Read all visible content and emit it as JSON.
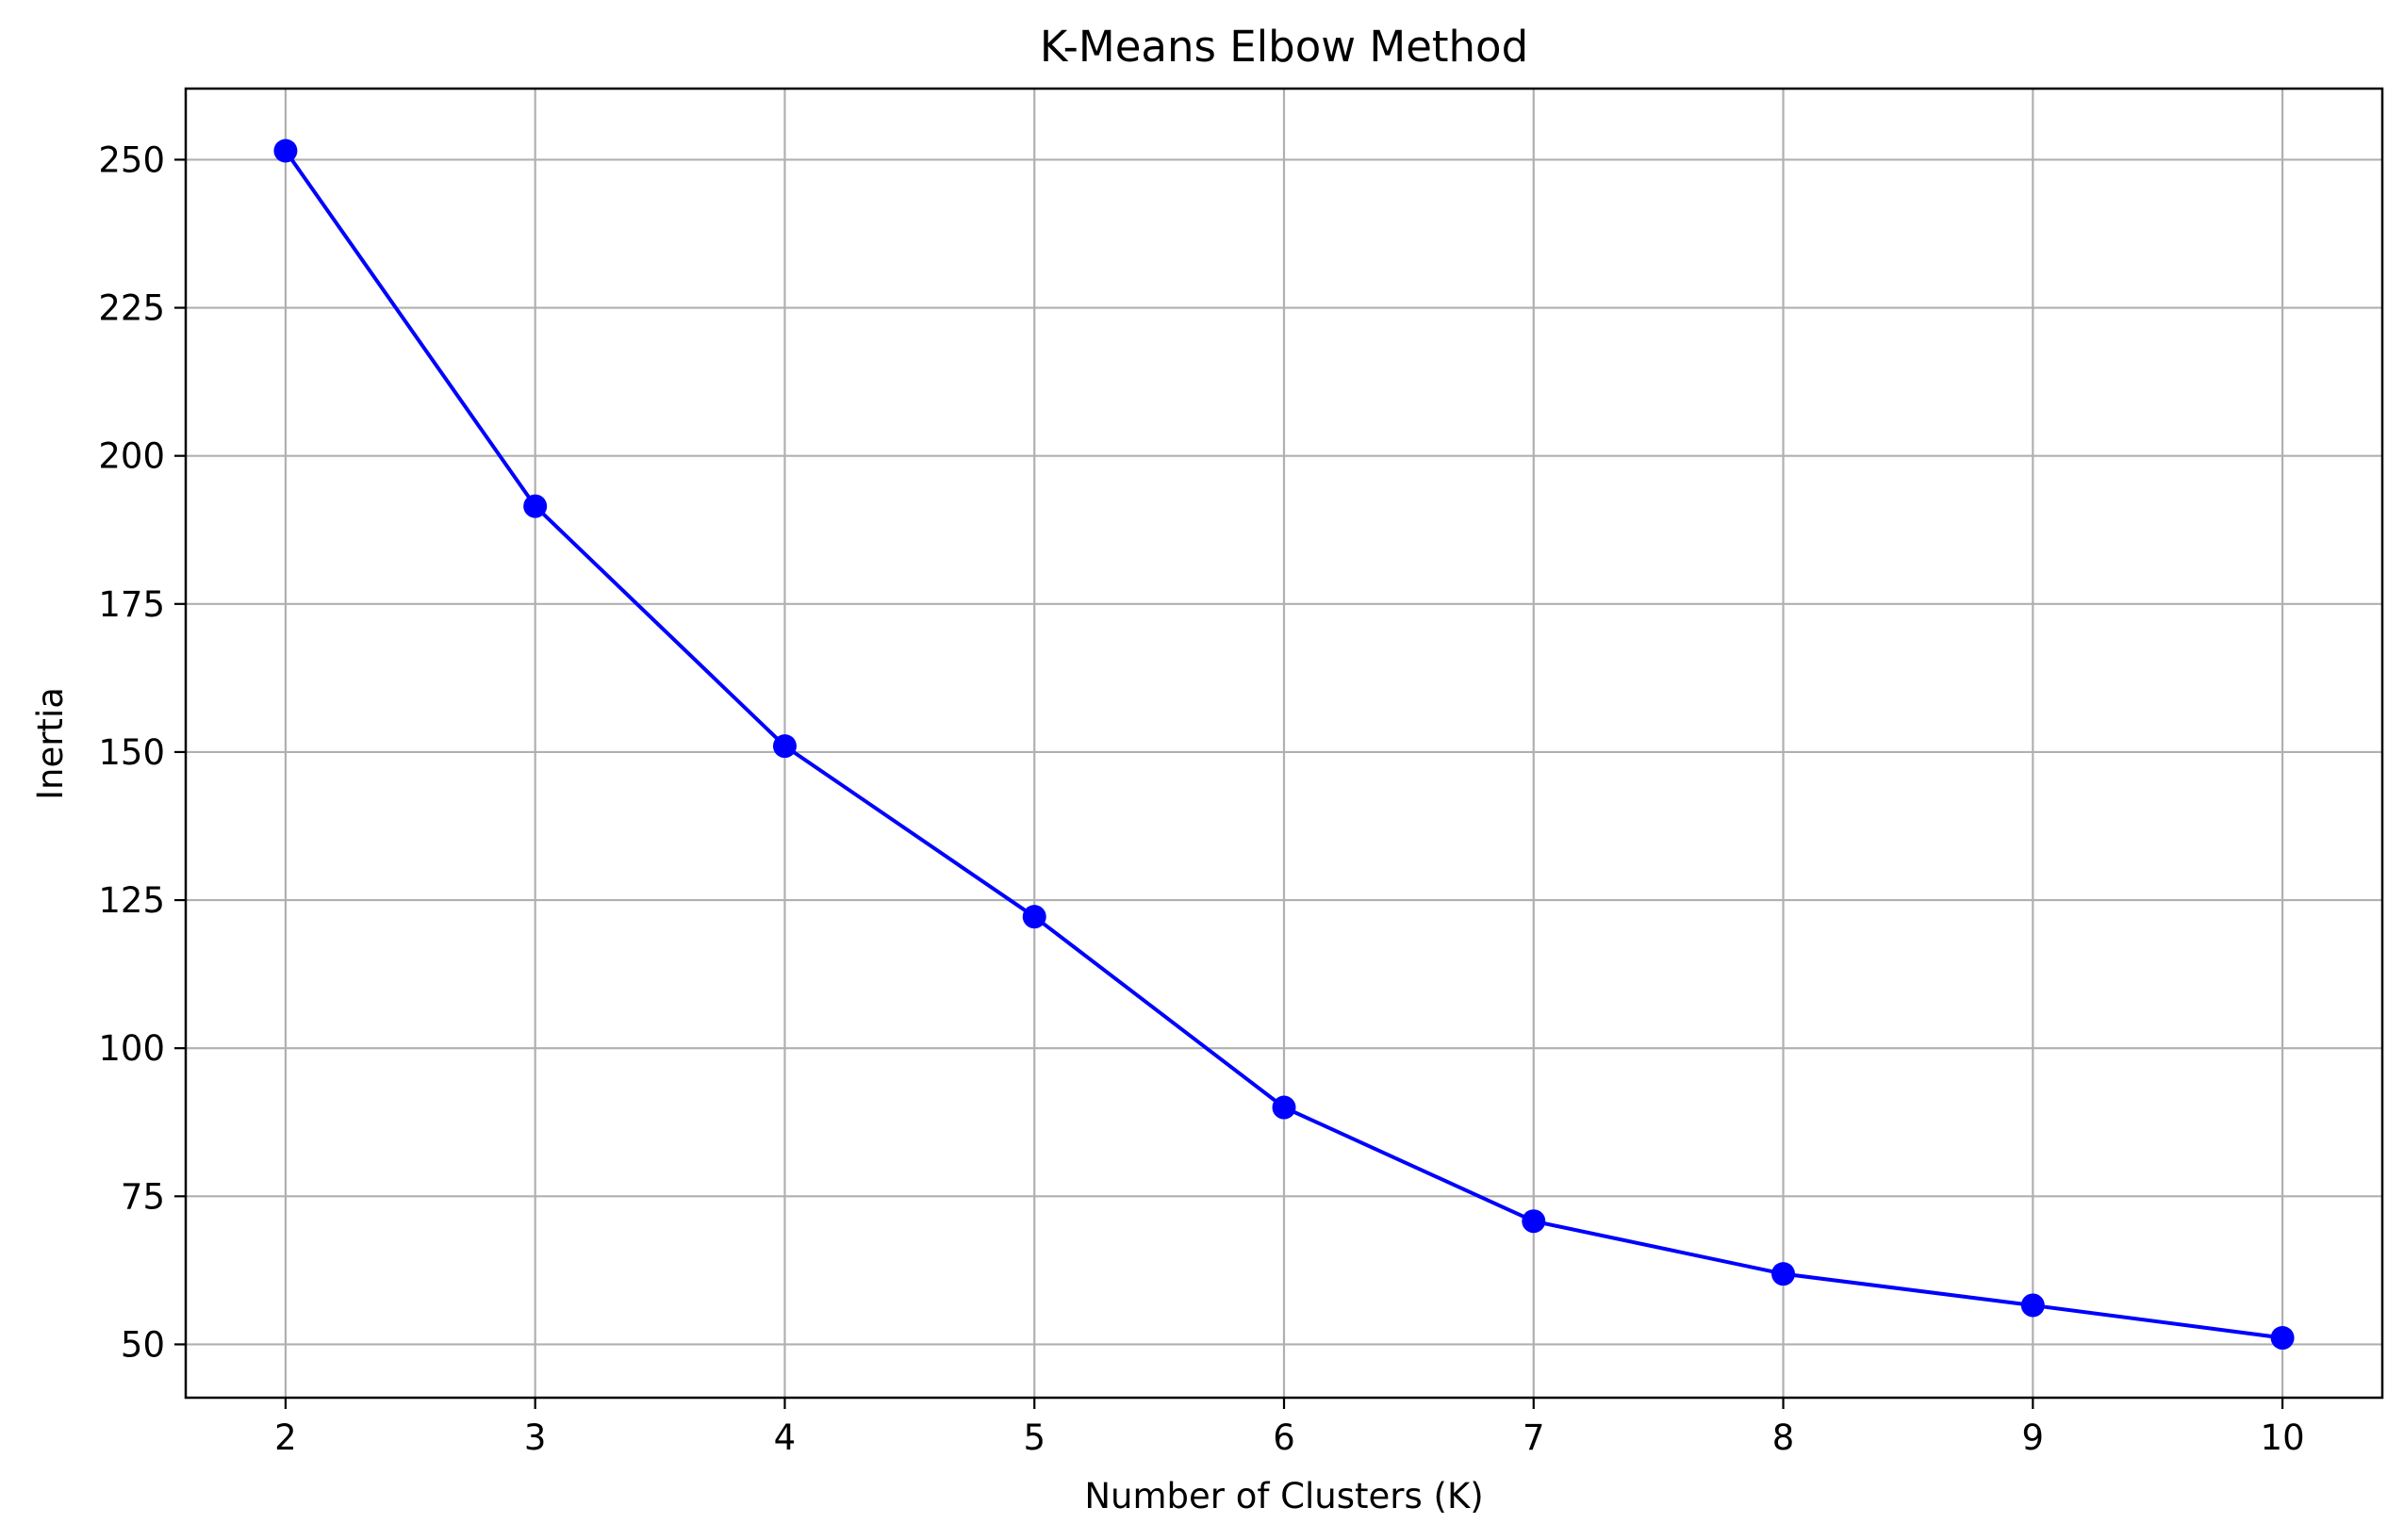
{
  "chart_data": {
    "type": "line",
    "title": "K-Means Elbow Method",
    "xlabel": "Number of Clusters (K)",
    "ylabel": "Inertia",
    "x": [
      2,
      3,
      4,
      5,
      6,
      7,
      8,
      9,
      10
    ],
    "series": [
      {
        "values": [
          251.5,
          191.5,
          151.0,
          122.2,
          90.0,
          70.8,
          61.9,
          56.6,
          51.1
        ],
        "color": "#0000ff",
        "marker": "circle"
      }
    ],
    "xticks": [
      "2",
      "3",
      "4",
      "5",
      "6",
      "7",
      "8",
      "9",
      "10"
    ],
    "yticks": [
      "50",
      "75",
      "100",
      "125",
      "150",
      "175",
      "200",
      "225",
      "250"
    ],
    "xlim": [
      1.6,
      10.4
    ],
    "ylim": [
      41.0,
      262.0
    ],
    "grid": true,
    "grid_color": "#b0b0b0",
    "axes_color": "#000000"
  }
}
